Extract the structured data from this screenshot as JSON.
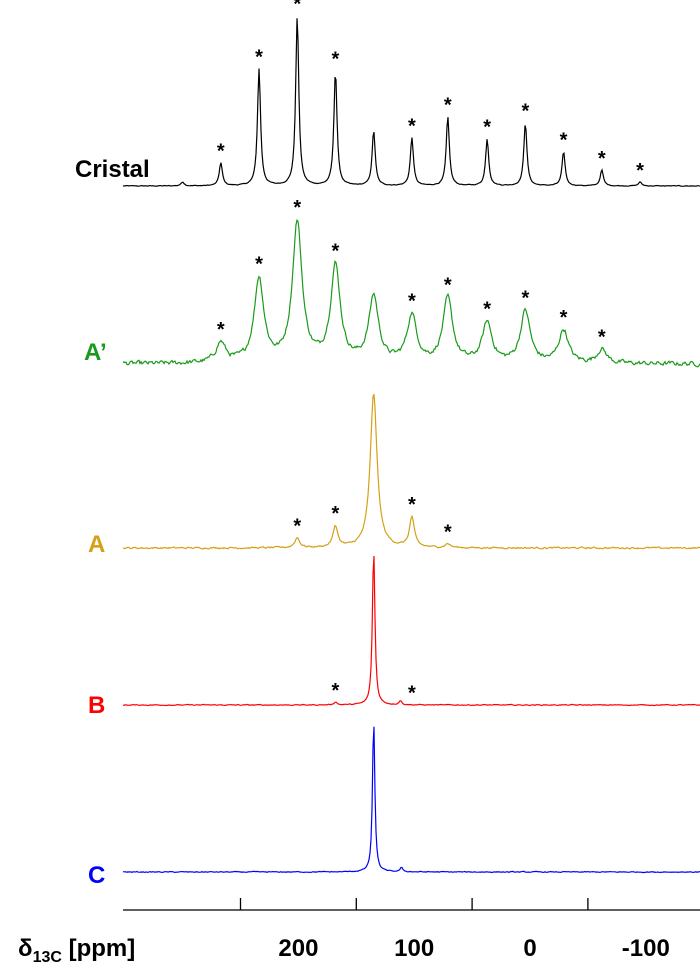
{
  "chart_data": {
    "type": "line",
    "title": "",
    "xlabel_main": "δ",
    "xlabel_sub": "13C",
    "xlabel_unit": " [ppm]",
    "x_reversed": true,
    "xlim": [
      -120,
      300
    ],
    "xticks_labeled": [
      200,
      100,
      0,
      -100
    ],
    "xtick_labels": [
      "200",
      "100",
      "0",
      "-100"
    ],
    "xticks_minor": [
      250,
      150,
      50,
      -50
    ],
    "star_symbol": "*",
    "series": [
      {
        "name": "Cristal",
        "color": "#000000",
        "noise": 0.7,
        "peaks": [
          {
            "x": 201,
            "h": 170,
            "w": 1.6
          },
          {
            "x": 234,
            "h": 117,
            "w": 1.6
          },
          {
            "x": 168,
            "h": 115,
            "w": 1.6
          },
          {
            "x": 71,
            "h": 69,
            "w": 1.6
          },
          {
            "x": 4,
            "h": 63,
            "w": 1.6
          },
          {
            "x": 135,
            "h": 55,
            "w": 1.6
          },
          {
            "x": 102,
            "h": 48,
            "w": 1.6
          },
          {
            "x": 37,
            "h": 47,
            "w": 1.6
          },
          {
            "x": 267,
            "h": 23,
            "w": 1.6
          },
          {
            "x": -29,
            "h": 34,
            "w": 1.6
          },
          {
            "x": -62,
            "h": 16,
            "w": 1.6
          },
          {
            "x": -95,
            "h": 4,
            "w": 1.6
          },
          {
            "x": 300,
            "h": 4,
            "w": 1.6
          }
        ],
        "stars": [
          267,
          234,
          201,
          168,
          102,
          71,
          37,
          4,
          -29,
          -62,
          -95
        ]
      },
      {
        "name": "A’",
        "color": "#1a9a1a",
        "noise": 4,
        "peaks": [
          {
            "x": 201,
            "h": 140,
            "w": 5
          },
          {
            "x": 234,
            "h": 84,
            "w": 5
          },
          {
            "x": 168,
            "h": 96,
            "w": 5
          },
          {
            "x": 135,
            "h": 66,
            "w": 5
          },
          {
            "x": 102,
            "h": 47,
            "w": 5
          },
          {
            "x": 71,
            "h": 64,
            "w": 5
          },
          {
            "x": 37,
            "h": 40,
            "w": 5
          },
          {
            "x": 4,
            "h": 52,
            "w": 5
          },
          {
            "x": -29,
            "h": 33,
            "w": 5
          },
          {
            "x": 267,
            "h": 20,
            "w": 5
          },
          {
            "x": -62,
            "h": 14,
            "w": 5
          }
        ],
        "stars": [
          267,
          234,
          201,
          168,
          102,
          71,
          37,
          4,
          -29,
          -62
        ]
      },
      {
        "name": "A",
        "color": "#d4a017",
        "noise": 1.5,
        "peaks": [
          {
            "x": 135,
            "h": 155,
            "w": 3.5
          },
          {
            "x": 102,
            "h": 30,
            "w": 2.5
          },
          {
            "x": 168,
            "h": 21,
            "w": 2.5
          },
          {
            "x": 201,
            "h": 10,
            "w": 2.5
          },
          {
            "x": 71,
            "h": 4,
            "w": 2.5
          }
        ],
        "stars": [
          201,
          168,
          102,
          71
        ]
      },
      {
        "name": "B",
        "color": "#ff0000",
        "noise": 0.8,
        "peaks": [
          {
            "x": 135,
            "h": 156,
            "w": 1.3
          },
          {
            "x": 112,
            "h": 4,
            "w": 1.5
          },
          {
            "x": 168,
            "h": 3,
            "w": 1.5
          }
        ],
        "stars": [
          168,
          102
        ]
      },
      {
        "name": "C",
        "color": "#0000ff",
        "noise": 0.8,
        "peaks": [
          {
            "x": 135,
            "h": 153,
            "w": 1.2
          },
          {
            "x": 111,
            "h": 4,
            "w": 1.5
          }
        ],
        "stars": []
      }
    ]
  }
}
